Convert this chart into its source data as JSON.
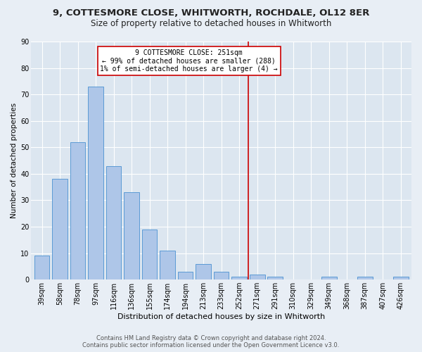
{
  "title": "9, COTTESMORE CLOSE, WHITWORTH, ROCHDALE, OL12 8ER",
  "subtitle": "Size of property relative to detached houses in Whitworth",
  "xlabel": "Distribution of detached houses by size in Whitworth",
  "ylabel": "Number of detached properties",
  "footer_line1": "Contains HM Land Registry data © Crown copyright and database right 2024.",
  "footer_line2": "Contains public sector information licensed under the Open Government Licence v3.0.",
  "categories": [
    "39sqm",
    "58sqm",
    "78sqm",
    "97sqm",
    "116sqm",
    "136sqm",
    "155sqm",
    "174sqm",
    "194sqm",
    "213sqm",
    "233sqm",
    "252sqm",
    "271sqm",
    "291sqm",
    "310sqm",
    "329sqm",
    "349sqm",
    "368sqm",
    "387sqm",
    "407sqm",
    "426sqm"
  ],
  "values": [
    9,
    38,
    52,
    73,
    43,
    33,
    19,
    11,
    3,
    6,
    3,
    1,
    2,
    1,
    0,
    0,
    1,
    0,
    1,
    0,
    1
  ],
  "bar_color": "#aec6e8",
  "bar_edge_color": "#5b9bd5",
  "marker_line_color": "#cc0000",
  "annotation_title": "9 COTTESMORE CLOSE: 251sqm",
  "annotation_line1": "← 99% of detached houses are smaller (288)",
  "annotation_line2": "1% of semi-detached houses are larger (4) →",
  "annotation_box_edge_color": "#cc0000",
  "ylim": [
    0,
    90
  ],
  "yticks": [
    0,
    10,
    20,
    30,
    40,
    50,
    60,
    70,
    80,
    90
  ],
  "background_color": "#e8eef5",
  "plot_bg_color": "#dce6f0",
  "title_fontsize": 9.5,
  "subtitle_fontsize": 8.5,
  "ylabel_fontsize": 7.5,
  "xlabel_fontsize": 8.0,
  "tick_fontsize": 7.0,
  "annotation_fontsize": 7.0,
  "footer_fontsize": 6.0
}
